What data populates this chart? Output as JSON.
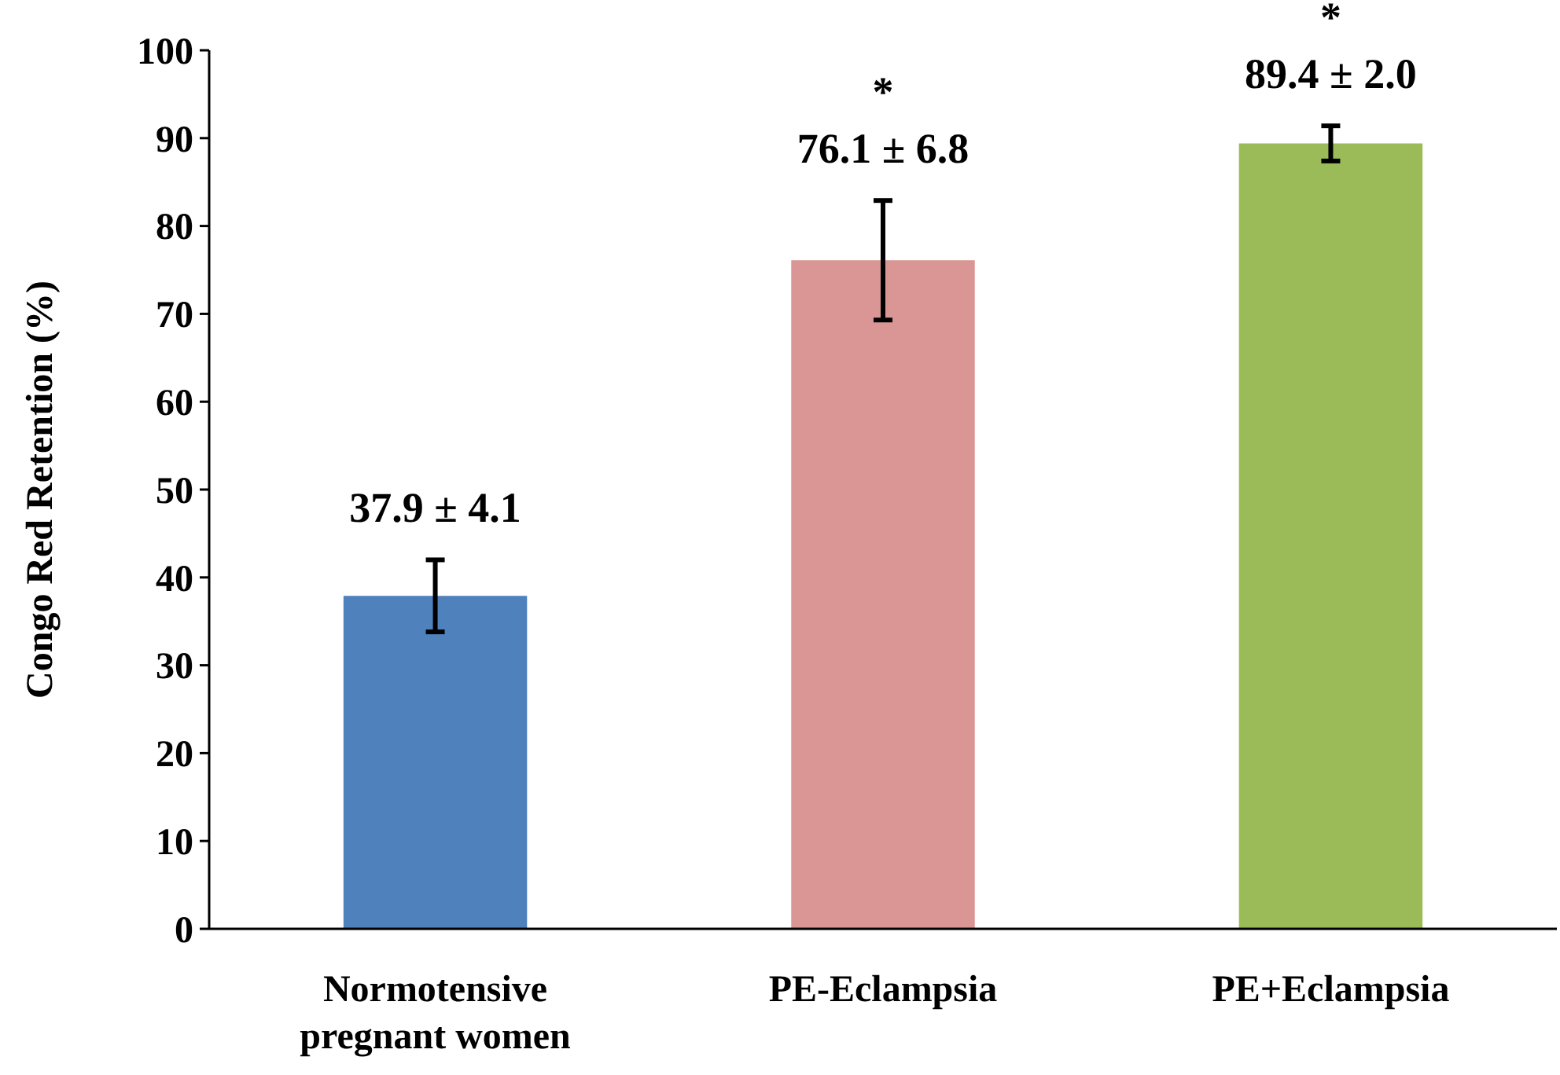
{
  "chart_data": {
    "type": "bar",
    "ylabel": "Congo Red Retention (%)",
    "categories": [
      "Normotensive\npregnant women",
      "PE-Eclampsia",
      "PE+Eclampsia"
    ],
    "values": [
      37.9,
      76.1,
      89.4
    ],
    "colors": [
      "#4f81bd",
      "#d99694",
      "#9bbb59"
    ],
    "errors": [
      4.1,
      6.8,
      2.0
    ],
    "value_labels": [
      "37.9 ± 4.1",
      "76.1 ± 6.8",
      "89.4 ± 2.0"
    ],
    "annotations": [
      {
        "text": "*",
        "x": "PE-Eclampsia",
        "y": 82.9
      },
      {
        "text": "*",
        "x": "PE+Eclampsia",
        "y": 91.4
      }
    ],
    "ylim": [
      0,
      100
    ],
    "yticks": [
      0,
      10,
      20,
      30,
      40,
      50,
      60,
      70,
      80,
      90,
      100
    ],
    "grid": false
  }
}
